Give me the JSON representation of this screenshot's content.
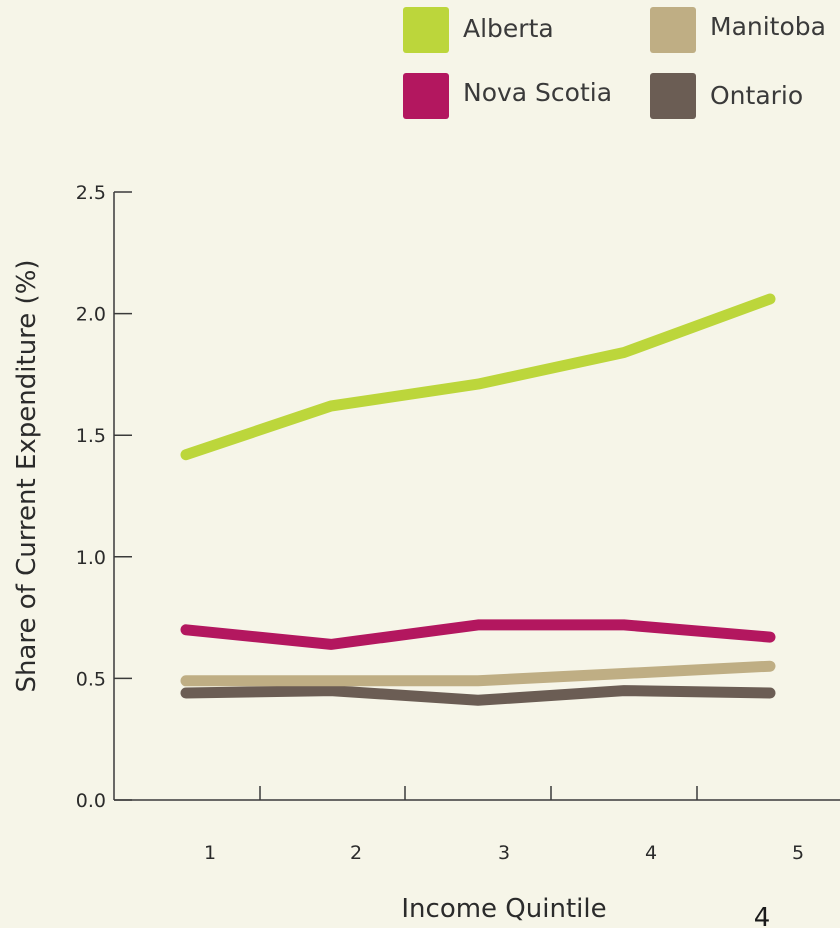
{
  "chart_data": {
    "type": "line",
    "title": "",
    "xlabel": "Income Quintile",
    "ylabel": "Share of Current Expenditure (%)",
    "categories": [
      "1",
      "2",
      "3",
      "4",
      "5"
    ],
    "ylim": [
      0,
      2.5
    ],
    "yticks": [
      "0.0",
      "0.5",
      "1.0",
      "1.5",
      "2.0",
      "2.5"
    ],
    "grid": false,
    "legend_position": "top-right",
    "series": [
      {
        "name": "Alberta",
        "color": "#bcd63b",
        "values": [
          1.42,
          1.62,
          1.71,
          1.84,
          2.06
        ]
      },
      {
        "name": "Nova Scotia",
        "color": "#b3175f",
        "values": [
          0.7,
          0.64,
          0.72,
          0.72,
          0.67
        ]
      },
      {
        "name": "Manitoba",
        "color": "#bfae84",
        "values": [
          0.49,
          0.49,
          0.49,
          0.52,
          0.55
        ]
      },
      {
        "name": "Ontario",
        "color": "#6b5d54",
        "values": [
          0.44,
          0.45,
          0.41,
          0.45,
          0.44
        ]
      }
    ]
  },
  "page_number": "4"
}
